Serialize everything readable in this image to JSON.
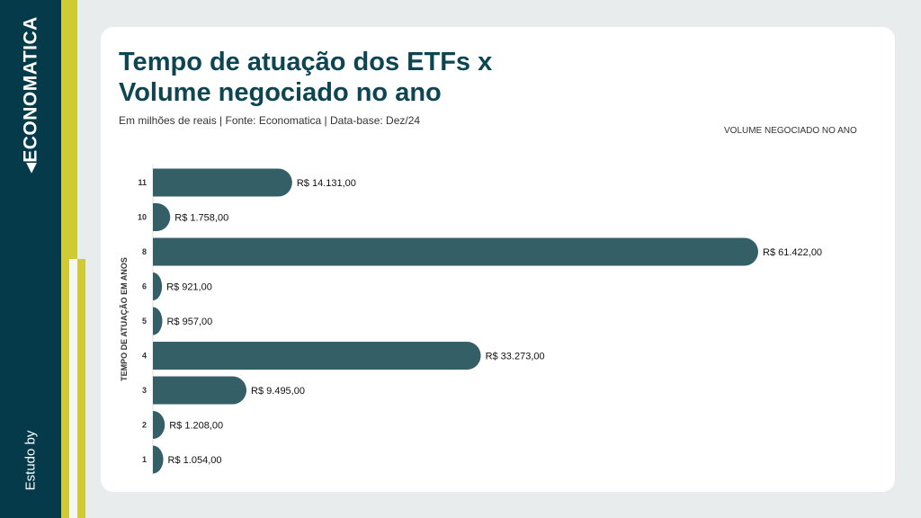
{
  "brand": {
    "logo": "ECONOMATICA",
    "study_by": "Estudo by"
  },
  "chart_data": {
    "type": "bar",
    "orientation": "horizontal",
    "title": "Tempo de atuação dos ETFs x Volume negociado no ano",
    "title_lines": [
      "Tempo de atuação dos ETFs x",
      "Volume negociado no ano"
    ],
    "subtitle": "Em milhões de reais | Fonte: Economatica | Data-base: Dez/24",
    "legend": "VOLUME NEGOCIADO NO ANO",
    "ylabel": "TEMPO DE ATUAÇÃO EM ANOS",
    "xlabel": "",
    "categories": [
      "11",
      "10",
      "8",
      "6",
      "5",
      "4",
      "3",
      "2",
      "1"
    ],
    "values": [
      14131,
      1758,
      61422,
      921,
      957,
      33273,
      9495,
      1208,
      1054
    ],
    "labels": [
      "R$ 14.131,00",
      "R$ 1.758,00",
      "R$ 61.422,00",
      "R$ 921,00",
      "R$ 957,00",
      "R$ 33.273,00",
      "R$ 9.495,00",
      "R$ 1.208,00",
      "R$ 1.054,00"
    ],
    "bar_color": "#345f66"
  }
}
